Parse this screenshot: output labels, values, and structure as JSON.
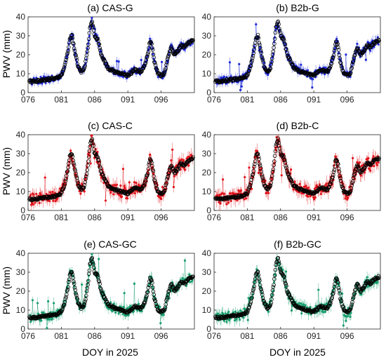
{
  "colors": {
    "gnss": "#1f2bd6",
    "cmonoc": "#e0141b",
    "combined": "#1a9e6e",
    "reference": "#000000"
  },
  "chart_data": [
    {
      "type": "scatter",
      "title": "(a) CAS-G",
      "ylabel": "PWV (mm)",
      "xlabel": "",
      "xlim": [
        76,
        101
      ],
      "ylim": [
        0,
        40
      ],
      "xticks": [
        "076",
        "081",
        "086",
        "091",
        "096"
      ],
      "yticks": [
        "0",
        "10",
        "20",
        "30",
        "40"
      ],
      "series": [
        {
          "style": "blue points with error bars",
          "color": "#1f2bd6"
        },
        {
          "style": "black open circles"
        }
      ]
    },
    {
      "type": "scatter",
      "title": "(b) B2b-G",
      "ylabel": "",
      "xlabel": "",
      "xlim": [
        76,
        101
      ],
      "ylim": [
        0,
        40
      ],
      "xticks": [
        "076",
        "081",
        "086",
        "091",
        "096"
      ],
      "yticks": [
        "0",
        "10",
        "20",
        "30",
        "40"
      ],
      "series": [
        {
          "style": "blue points with error bars",
          "color": "#1f2bd6"
        },
        {
          "style": "black open circles"
        }
      ]
    },
    {
      "type": "scatter",
      "title": "(c) CAS-C",
      "ylabel": "PWV (mm)",
      "xlabel": "",
      "xlim": [
        76,
        101
      ],
      "ylim": [
        0,
        40
      ],
      "xticks": [
        "076",
        "081",
        "086",
        "091",
        "096"
      ],
      "yticks": [
        "0",
        "10",
        "20",
        "30",
        "40"
      ],
      "series": [
        {
          "style": "red points with error bars",
          "color": "#e0141b"
        },
        {
          "style": "black open circles"
        }
      ]
    },
    {
      "type": "scatter",
      "title": "(d) B2b-C",
      "ylabel": "",
      "xlabel": "",
      "xlim": [
        76,
        101
      ],
      "ylim": [
        0,
        40
      ],
      "xticks": [
        "076",
        "081",
        "086",
        "091",
        "096"
      ],
      "yticks": [
        "0",
        "10",
        "20",
        "30",
        "40"
      ],
      "series": [
        {
          "style": "red points with error bars",
          "color": "#e0141b"
        },
        {
          "style": "black open circles"
        }
      ]
    },
    {
      "type": "scatter",
      "title": "(e) CAS-GC",
      "ylabel": "PWV (mm)",
      "xlabel": "DOY in 2025",
      "xlim": [
        76,
        101
      ],
      "ylim": [
        0,
        40
      ],
      "xticks": [
        "076",
        "081",
        "086",
        "091",
        "096"
      ],
      "yticks": [
        "0",
        "10",
        "20",
        "30",
        "40"
      ],
      "series": [
        {
          "style": "green points with error bars",
          "color": "#1a9e6e"
        },
        {
          "style": "black open circles"
        }
      ]
    },
    {
      "type": "scatter",
      "title": "(f) B2b-GC",
      "ylabel": "",
      "xlabel": "DOY in 2025",
      "xlim": [
        76,
        101
      ],
      "ylim": [
        0,
        40
      ],
      "xticks": [
        "076",
        "081",
        "086",
        "091",
        "096"
      ],
      "yticks": [
        "0",
        "10",
        "20",
        "30",
        "40"
      ],
      "series": [
        {
          "style": "green points with error bars",
          "color": "#1a9e6e"
        },
        {
          "style": "black open circles"
        }
      ]
    }
  ],
  "reference_curve": {
    "x": [
      76,
      77,
      78,
      79,
      80,
      81,
      81.5,
      82,
      82.3,
      82.6,
      83,
      83.5,
      84,
      84.5,
      85,
      85.3,
      85.6,
      86,
      86.5,
      87,
      88,
      89,
      90,
      91,
      92,
      93,
      93.5,
      94,
      94.3,
      94.6,
      95,
      95.5,
      96,
      96.5,
      97,
      97.5,
      98,
      98.5,
      99,
      99.5,
      100,
      101
    ],
    "y": [
      6,
      6,
      6.5,
      7,
      7.5,
      9,
      14,
      22,
      29,
      30,
      22,
      14,
      11,
      13,
      24,
      34,
      38,
      30,
      28,
      20,
      13,
      11,
      10,
      9,
      12,
      11,
      14,
      20,
      27,
      25,
      16,
      10,
      9,
      10,
      18,
      24,
      20,
      22,
      25,
      24,
      26,
      28
    ]
  }
}
